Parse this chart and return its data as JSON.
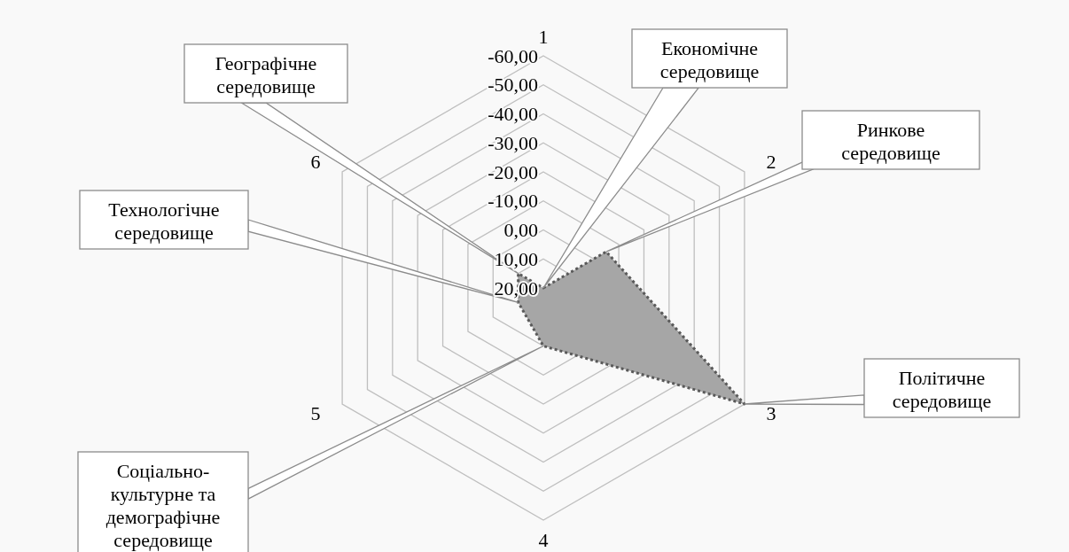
{
  "chart_data": {
    "type": "radar",
    "categories": [
      "1",
      "2",
      "3",
      "4",
      "5",
      "6"
    ],
    "series": [
      {
        "color": "#a6a6a6",
        "values": [
          20,
          -5,
          -60,
          0,
          10,
          10
        ]
      }
    ],
    "ylim": [
      20,
      -60
    ],
    "yticks": [
      {
        "value": 20,
        "label": "20,00"
      },
      {
        "value": 10,
        "label": "10,00"
      },
      {
        "value": 0,
        "label": "0,00"
      },
      {
        "value": -10,
        "label": "-10,00"
      },
      {
        "value": -20,
        "label": "-20,00"
      },
      {
        "value": -30,
        "label": "-30,00"
      },
      {
        "value": -40,
        "label": "-40,00"
      },
      {
        "value": -50,
        "label": "-50,00"
      },
      {
        "value": -60,
        "label": "-60,00"
      }
    ],
    "grid": true,
    "line_style": "dotted",
    "marker": "none",
    "legend": false,
    "annotations": [
      {
        "text": "Економічне\nсередовище",
        "x": "1"
      },
      {
        "text": "Ринкове\nсередовище",
        "x": "2"
      },
      {
        "text": "Політичне\nсередовище",
        "x": "3"
      },
      {
        "text": "Соціально-\nкультурне та\nдемографічне\nсередовище",
        "x": "4"
      },
      {
        "text": "Технологічне\nсередовище",
        "x": "5"
      },
      {
        "text": "Географічне\nсередовище",
        "x": "6"
      }
    ]
  }
}
